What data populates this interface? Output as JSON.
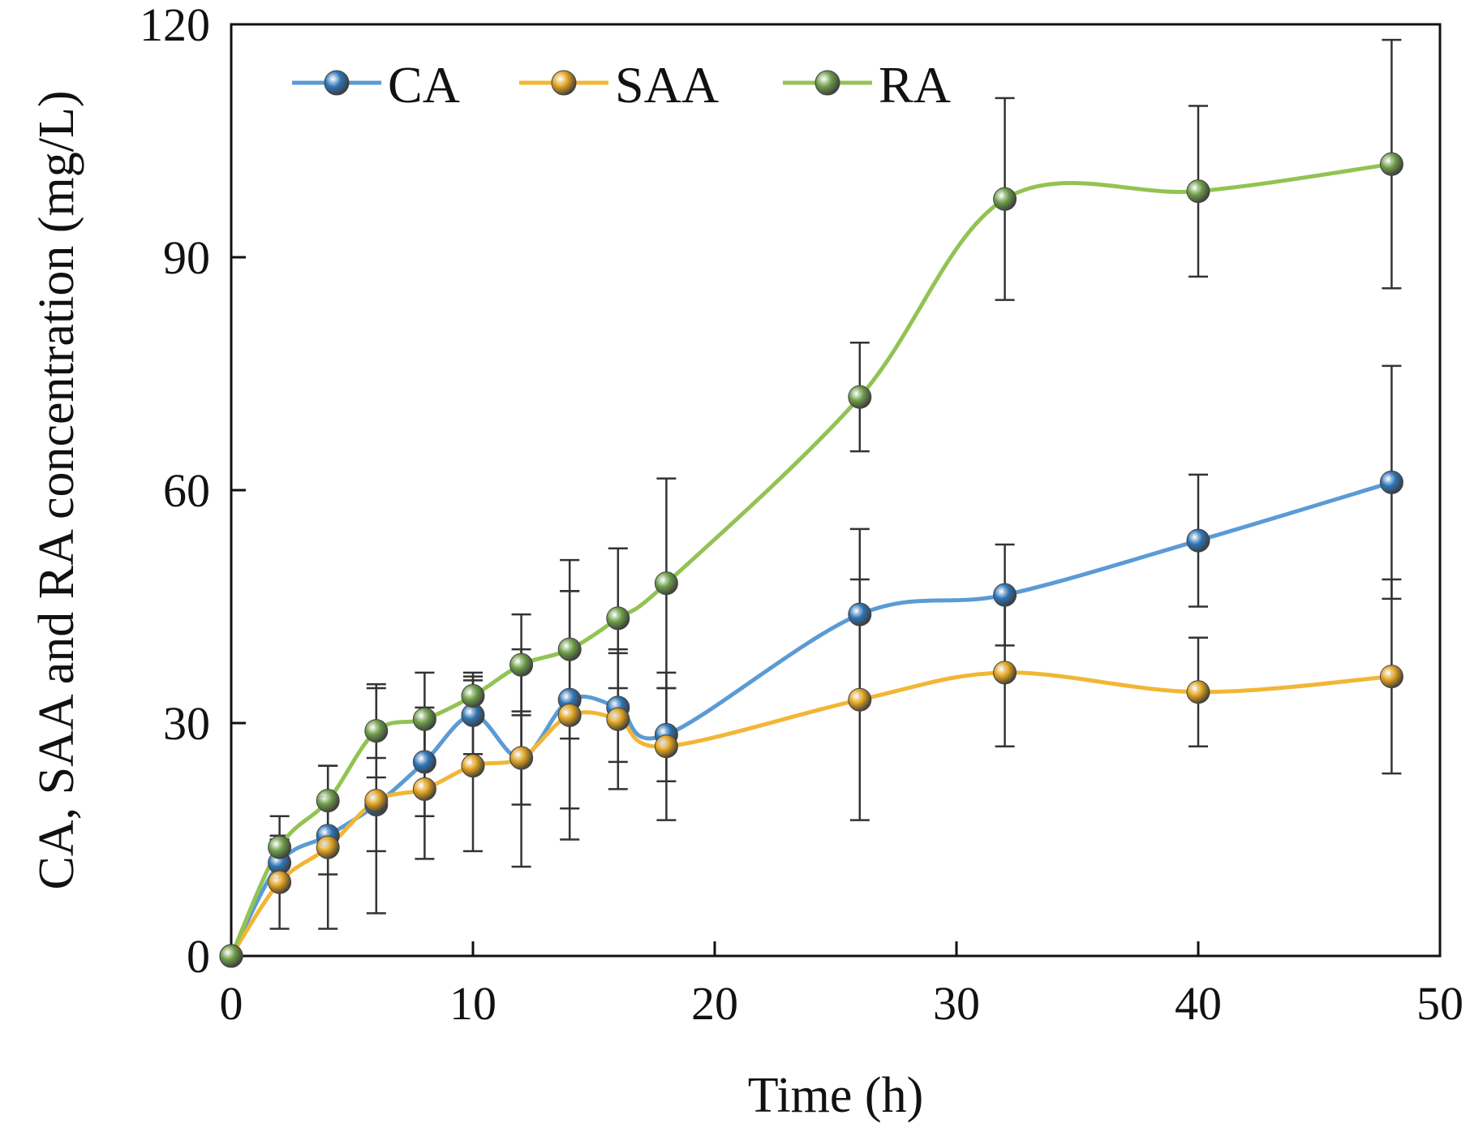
{
  "chart_data": {
    "type": "line",
    "title": "",
    "xlabel": "Time (h)",
    "ylabel": "CA, SAA and RA concentration (mg/L)",
    "xlim": [
      0,
      50
    ],
    "ylim": [
      0,
      120
    ],
    "xticks": [
      0,
      10,
      20,
      30,
      40,
      50
    ],
    "yticks": [
      0,
      30,
      60,
      90,
      120
    ],
    "grid": false,
    "legend_position": "top-left",
    "x": [
      0,
      2,
      4,
      6,
      8,
      10,
      12,
      14,
      16,
      18,
      26,
      32,
      40,
      48
    ],
    "series": [
      {
        "name": "CA",
        "color": "#5b9bd5",
        "marker_color": "#2e75b6",
        "values": [
          0,
          12,
          15.5,
          19.5,
          25,
          31,
          25.5,
          33,
          32,
          28.5,
          44,
          46.5,
          53.5,
          61
        ],
        "errors": [
          0,
          3,
          5,
          6,
          7,
          5,
          6,
          14,
          7,
          6,
          11,
          6.5,
          8.5,
          15
        ]
      },
      {
        "name": "SAA",
        "color": "#f2b636",
        "marker_color": "#e0a21f",
        "values": [
          0,
          9.5,
          14,
          20,
          21.5,
          24.5,
          25.5,
          31,
          30.5,
          27,
          33,
          36.5,
          34,
          36
        ],
        "errors": [
          0,
          6,
          10.5,
          14.5,
          9,
          11,
          14,
          16,
          9,
          9.5,
          15.5,
          9.5,
          7,
          12.5
        ]
      },
      {
        "name": "RA",
        "color": "#92c353",
        "marker_color": "#6e9d4a",
        "values": [
          0,
          14,
          20,
          29,
          30.5,
          33.5,
          37.5,
          39.5,
          43.5,
          48,
          72,
          97.5,
          98.5,
          102
        ],
        "errors": [
          0,
          4,
          4.5,
          6,
          6,
          3,
          6.5,
          11.5,
          9,
          13.5,
          7,
          13,
          11,
          16
        ]
      }
    ]
  }
}
